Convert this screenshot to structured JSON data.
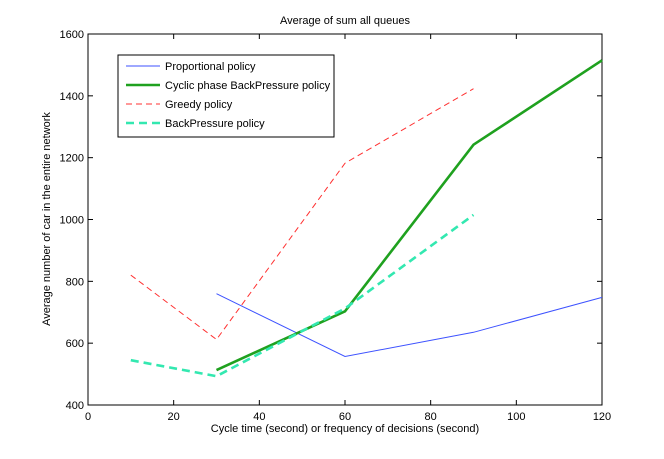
{
  "chart_data": {
    "type": "line",
    "title": "Average of sum all queues",
    "xlabel": "Cycle time (second) or frequency of decisions (second)",
    "ylabel": "Average number of car in the entire network",
    "xlim": [
      0,
      120
    ],
    "ylim": [
      400,
      1600
    ],
    "xticks": [
      0,
      20,
      40,
      60,
      80,
      100,
      120
    ],
    "yticks": [
      400,
      600,
      800,
      1000,
      1200,
      1400,
      1600
    ],
    "grid": false,
    "legend_position": "top-left",
    "series": [
      {
        "name": "Proportional policy",
        "color": "#3d52ff",
        "style": "solid",
        "weight": "thin",
        "x": [
          30,
          60,
          90,
          120
        ],
        "y": [
          760,
          557,
          635,
          748
        ]
      },
      {
        "name": "Cyclic phase BackPressure policy",
        "color": "#1fa11f",
        "style": "solid",
        "weight": "thick",
        "x": [
          30,
          60,
          90,
          120
        ],
        "y": [
          513,
          703,
          1242,
          1515
        ]
      },
      {
        "name": "Greedy policy",
        "color": "#ff3030",
        "style": "dashed",
        "weight": "thin",
        "x": [
          10,
          30,
          60,
          90
        ],
        "y": [
          820,
          612,
          1182,
          1423
        ]
      },
      {
        "name": "BackPressure policy",
        "color": "#33e8b0",
        "style": "dashed",
        "weight": "thick",
        "x": [
          10,
          30,
          60,
          90
        ],
        "y": [
          545,
          493,
          712,
          1015
        ]
      }
    ]
  }
}
